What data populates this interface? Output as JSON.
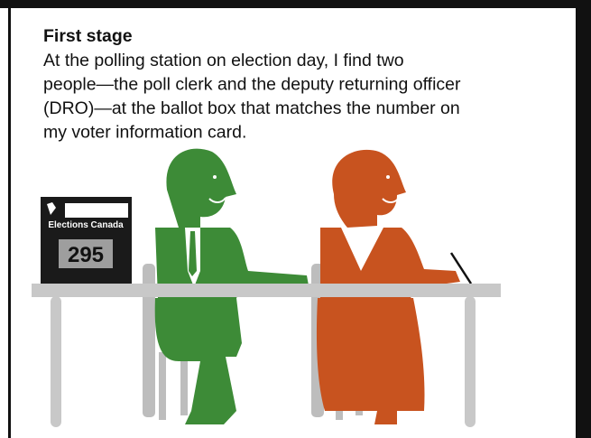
{
  "heading": "First stage",
  "body_lines": [
    "At the polling station on election day, I find two",
    "people—the poll clerk and the deputy returning officer",
    "(DRO)—at the ballot box that matches the number on",
    "my voter information card."
  ],
  "ballot_box": {
    "brand": "Elections Canada",
    "number": "295"
  }
}
